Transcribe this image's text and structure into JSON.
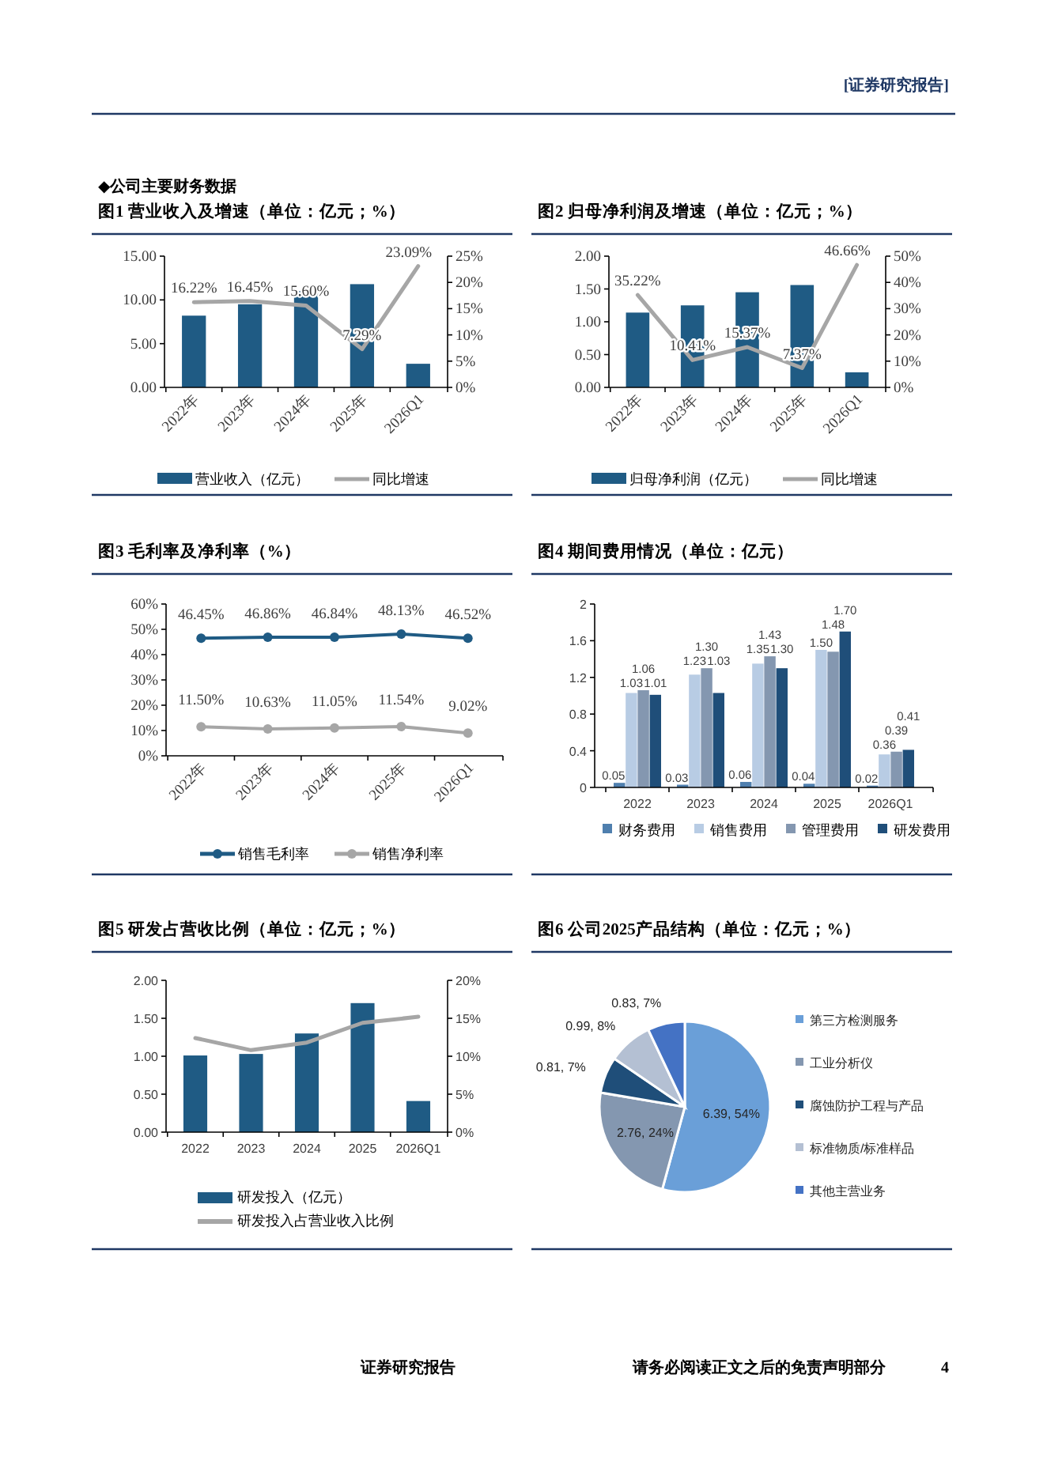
{
  "chart_data": [
    {
      "type": "other",
      "annotations": [
        "[证券研究报告]",
        "◆公司主要财务数据",
        "证券研究报告",
        "请务必阅读正文之后的免责声明部分",
        "4"
      ]
    },
    {
      "type": "bar",
      "title": "图1 营业收入及增速（单位：亿元；%）",
      "categories": [
        "2022年",
        "2023年",
        "2024年",
        "2025年",
        "2026Q1"
      ],
      "ylim": [
        0,
        15
      ],
      "yticks": [
        {
          "value": 0,
          "label": "0.00"
        },
        {
          "value": 5,
          "label": "5.00"
        },
        {
          "value": 10,
          "label": "10.00"
        },
        {
          "value": 15,
          "label": "15.00"
        }
      ],
      "y2lim": [
        0,
        25
      ],
      "y2ticks": [
        {
          "value": 0,
          "label": "0%"
        },
        {
          "value": 5,
          "label": "5%"
        },
        {
          "value": 10,
          "label": "10%"
        },
        {
          "value": 15,
          "label": "15%"
        },
        {
          "value": 20,
          "label": "20%"
        },
        {
          "value": 25,
          "label": "25%"
        }
      ],
      "legend": "bottom",
      "series": [
        {
          "name": "营业收入（亿元）",
          "type": "bar",
          "color": "#1f5b84",
          "values": [
            8.2,
            9.5,
            11.0,
            11.8,
            2.7
          ]
        },
        {
          "name": "同比增速",
          "type": "line",
          "axis": "y2",
          "color": "#a6a6a6",
          "values": [
            16.22,
            16.45,
            15.6,
            7.29,
            23.09
          ],
          "value_labels": [
            "16.22%",
            "16.45%",
            "15.60%",
            "7.29%",
            "23.09%"
          ]
        }
      ]
    },
    {
      "type": "bar",
      "title": "图2 归母净利润及增速（单位：亿元；%）",
      "categories": [
        "2022年",
        "2023年",
        "2024年",
        "2025年",
        "2026Q1"
      ],
      "ylim": [
        0,
        2
      ],
      "yticks": [
        {
          "value": 0,
          "label": "0.00"
        },
        {
          "value": 0.5,
          "label": "0.50"
        },
        {
          "value": 1,
          "label": "1.00"
        },
        {
          "value": 1.5,
          "label": "1.50"
        },
        {
          "value": 2,
          "label": "2.00"
        }
      ],
      "y2lim": [
        0,
        50
      ],
      "y2ticks": [
        {
          "value": 0,
          "label": "0%"
        },
        {
          "value": 10,
          "label": "10%"
        },
        {
          "value": 20,
          "label": "20%"
        },
        {
          "value": 30,
          "label": "30%"
        },
        {
          "value": 40,
          "label": "40%"
        },
        {
          "value": 50,
          "label": "50%"
        }
      ],
      "legend": "bottom",
      "series": [
        {
          "name": "归母净利润（亿元）",
          "type": "bar",
          "color": "#1f5b84",
          "values": [
            1.14,
            1.25,
            1.45,
            1.56,
            0.23
          ]
        },
        {
          "name": "同比增速",
          "type": "line",
          "axis": "y2",
          "color": "#a6a6a6",
          "values": [
            35.22,
            10.41,
            15.37,
            7.37,
            46.66
          ],
          "value_labels": [
            "35.22%",
            "10.41%",
            "15.37%",
            "7.37%",
            "46.66%"
          ]
        }
      ]
    },
    {
      "type": "line",
      "title": "图3 毛利率及净利率（%）",
      "categories": [
        "2022年",
        "2023年",
        "2024年",
        "2025年",
        "2026Q1"
      ],
      "ylim": [
        0,
        60
      ],
      "yticks": [
        {
          "value": 0,
          "label": "0%"
        },
        {
          "value": 10,
          "label": "10%"
        },
        {
          "value": 20,
          "label": "20%"
        },
        {
          "value": 30,
          "label": "30%"
        },
        {
          "value": 40,
          "label": "40%"
        },
        {
          "value": 50,
          "label": "50%"
        },
        {
          "value": 60,
          "label": "60%"
        }
      ],
      "legend": "bottom",
      "marker": "circle",
      "series": [
        {
          "name": "销售毛利率",
          "color": "#1f5b84",
          "values": [
            46.45,
            46.86,
            46.84,
            48.13,
            46.52
          ],
          "value_labels": [
            "46.45%",
            "46.86%",
            "46.84%",
            "48.13%",
            "46.52%"
          ]
        },
        {
          "name": "销售净利率",
          "color": "#a6a6a6",
          "values": [
            11.5,
            10.63,
            11.05,
            11.54,
            9.02
          ],
          "value_labels": [
            "11.50%",
            "10.63%",
            "11.05%",
            "11.54%",
            "9.02%"
          ]
        }
      ]
    },
    {
      "type": "bar",
      "title": "图4 期间费用情况（单位：亿元）",
      "categories": [
        "2022",
        "2023",
        "2024",
        "2025",
        "2026Q1"
      ],
      "ylim": [
        0,
        2
      ],
      "yticks": [
        0,
        0.4,
        0.8,
        1.2,
        1.6,
        2
      ],
      "legend": "bottom",
      "series": [
        {
          "name": "财务费用",
          "color": "#4f7fae",
          "values": [
            0.05,
            0.03,
            0.06,
            0.04,
            0.02
          ],
          "value_labels": [
            "0.05",
            "0.03",
            "0.06",
            "0.04",
            "0.02"
          ]
        },
        {
          "name": "销售费用",
          "color": "#b8cce4",
          "values": [
            1.03,
            1.23,
            1.35,
            1.5,
            0.36
          ],
          "value_labels": [
            "1.03",
            "1.23",
            "1.35",
            "1.50",
            "0.36"
          ]
        },
        {
          "name": "管理费用",
          "color": "#8497b0",
          "values": [
            1.06,
            1.3,
            1.43,
            1.48,
            0.39
          ],
          "value_labels": [
            "1.06",
            "1.30",
            "1.43",
            "1.48",
            "0.39"
          ]
        },
        {
          "name": "研发费用",
          "color": "#1f4e79",
          "values": [
            1.01,
            1.03,
            1.3,
            1.7,
            0.41
          ],
          "value_labels": [
            "1.01",
            "1.03",
            "1.30",
            "1.70",
            "0.41"
          ]
        }
      ]
    },
    {
      "type": "bar",
      "title": "图5 研发占营收比例（单位：亿元；%）",
      "categories": [
        "2022",
        "2023",
        "2024",
        "2025",
        "2026Q1"
      ],
      "ylim": [
        0,
        2
      ],
      "yticks": [
        {
          "value": 0,
          "label": "0.00"
        },
        {
          "value": 0.5,
          "label": "0.50"
        },
        {
          "value": 1,
          "label": "1.00"
        },
        {
          "value": 1.5,
          "label": "1.50"
        },
        {
          "value": 2,
          "label": "2.00"
        }
      ],
      "y2lim": [
        0,
        20
      ],
      "y2ticks": [
        {
          "value": 0,
          "label": "0%"
        },
        {
          "value": 5,
          "label": "5%"
        },
        {
          "value": 10,
          "label": "10%"
        },
        {
          "value": 15,
          "label": "15%"
        },
        {
          "value": 20,
          "label": "20%"
        }
      ],
      "legend": "bottom",
      "series": [
        {
          "name": "研发投入（亿元）",
          "type": "bar",
          "color": "#1f5b84",
          "values": [
            1.01,
            1.03,
            1.3,
            1.7,
            0.41
          ]
        },
        {
          "name": "研发投入占营业收入比例",
          "type": "line",
          "axis": "y2",
          "color": "#a6a6a6",
          "values": [
            12.4,
            10.8,
            11.8,
            14.4,
            15.2
          ]
        }
      ]
    },
    {
      "type": "pie",
      "title": "图6 公司2025产品结构（单位：亿元；%）",
      "categories": [
        "第三方检测服务",
        "工业分析仪",
        "腐蚀防护工程与产品",
        "标准物质/标准样品",
        "其他主营业务"
      ],
      "values": [
        6.39,
        2.76,
        0.81,
        0.99,
        0.83
      ],
      "colors": [
        "#6a9fd8",
        "#8497b0",
        "#1f4e79",
        "#b4c0d3",
        "#4472c4"
      ],
      "value_labels": [
        "6.39, 54%",
        "2.76, 24%",
        "0.81, 7%",
        "0.99, 8%",
        "0.83, 7%"
      ],
      "legend": "right"
    }
  ]
}
